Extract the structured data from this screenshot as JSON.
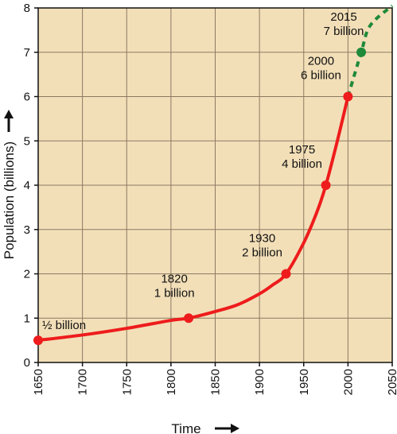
{
  "chart_data": {
    "type": "line",
    "xlabel": "Time",
    "ylabel": "Population (billions)",
    "xlim": [
      1650,
      2050
    ],
    "ylim": [
      0,
      8
    ],
    "x_ticks": [
      "1650",
      "1700",
      "1750",
      "1800",
      "1850",
      "1900",
      "1950",
      "2000",
      "2050"
    ],
    "y_ticks": [
      "0",
      "1",
      "2",
      "3",
      "4",
      "5",
      "6",
      "7",
      "8"
    ],
    "grid": true,
    "background_color": "#f2dfb8",
    "grid_color": "#8c7a62",
    "series": [
      {
        "style": "solid",
        "color": "#ee1c1c",
        "points": [
          [
            1650,
            0.5
          ],
          [
            1700,
            0.62
          ],
          [
            1750,
            0.77
          ],
          [
            1800,
            0.95
          ],
          [
            1820,
            1.0
          ],
          [
            1850,
            1.15
          ],
          [
            1875,
            1.3
          ],
          [
            1900,
            1.55
          ],
          [
            1915,
            1.75
          ],
          [
            1930,
            2.0
          ],
          [
            1950,
            2.7
          ],
          [
            1965,
            3.4
          ],
          [
            1975,
            4.0
          ],
          [
            1988,
            5.0
          ],
          [
            2000,
            6.0
          ]
        ]
      },
      {
        "style": "dashed",
        "color": "#1f8a3a",
        "points": [
          [
            2000,
            6.0
          ],
          [
            2015,
            7.0
          ],
          [
            2025,
            7.6
          ],
          [
            2050,
            8.05
          ]
        ]
      }
    ],
    "markers": [
      {
        "x": 1650,
        "y": 0.5,
        "color": "#ee1c1c",
        "labels": [
          "½ billion"
        ]
      },
      {
        "x": 1820,
        "y": 1,
        "color": "#ee1c1c",
        "labels": [
          "1820",
          "1 billion"
        ]
      },
      {
        "x": 1930,
        "y": 2,
        "color": "#ee1c1c",
        "labels": [
          "1930",
          "2 billion"
        ]
      },
      {
        "x": 1975,
        "y": 4,
        "color": "#ee1c1c",
        "labels": [
          "1975",
          "4 billion"
        ]
      },
      {
        "x": 2000,
        "y": 6,
        "color": "#ee1c1c",
        "labels": [
          "2000",
          "6 billion"
        ]
      },
      {
        "x": 2015,
        "y": 7,
        "color": "#1f8a3a",
        "labels": [
          "2015",
          "7 billion"
        ]
      }
    ]
  }
}
